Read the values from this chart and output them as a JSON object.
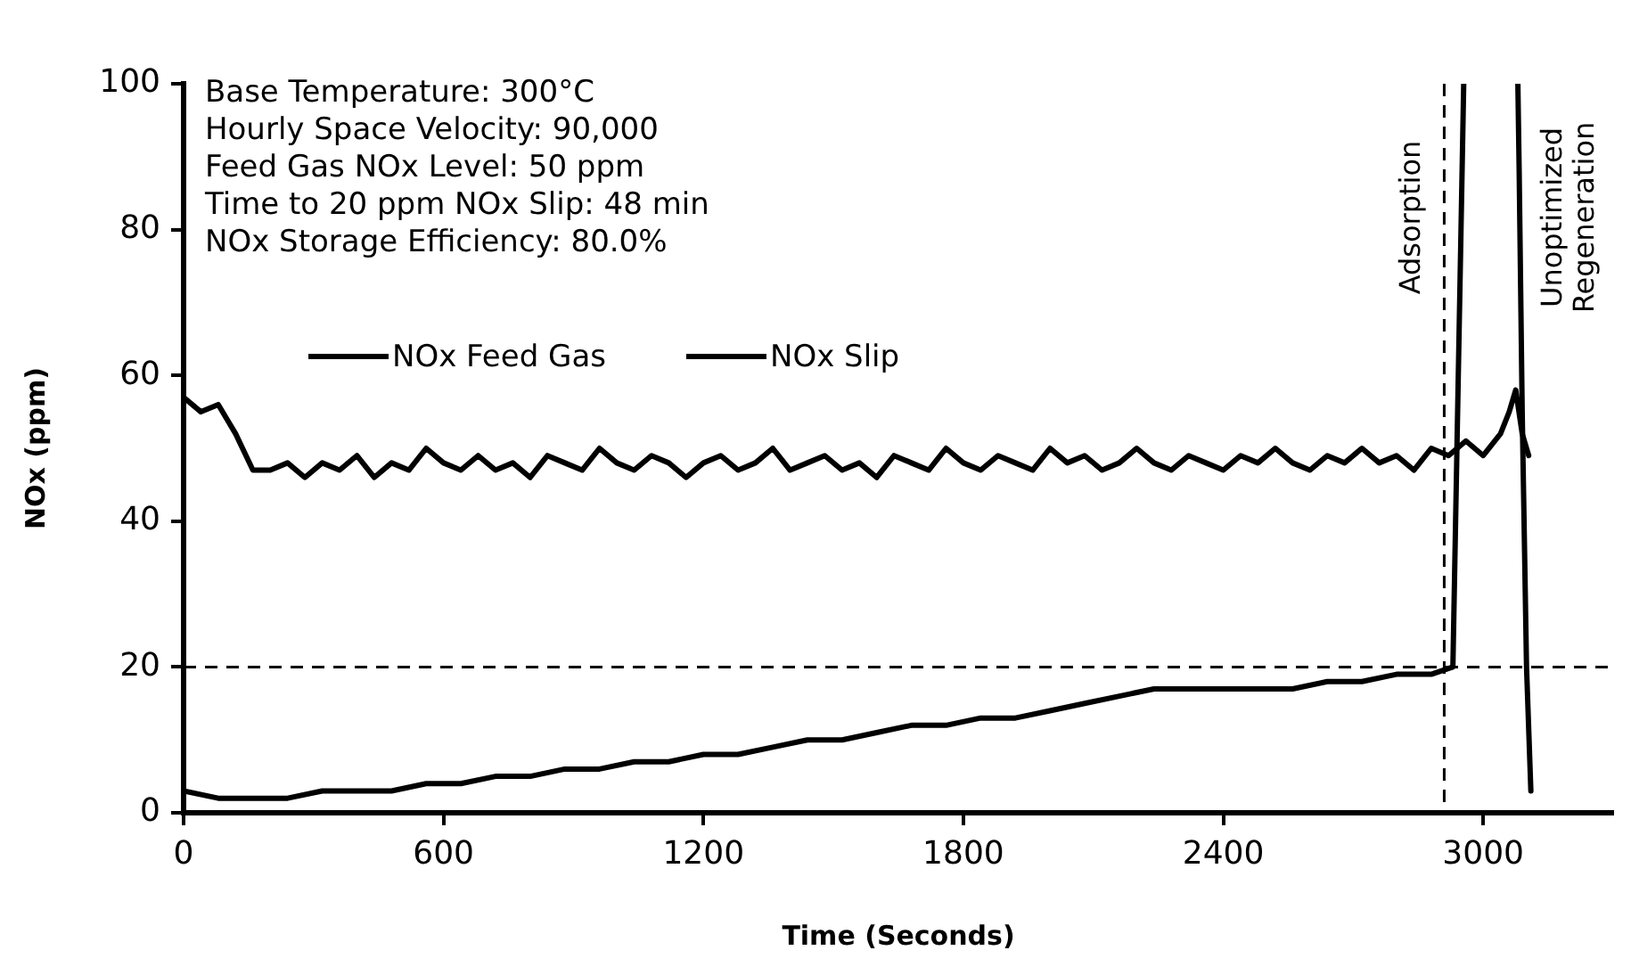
{
  "chart_data": {
    "type": "line",
    "xlabel": "Time (Seconds)",
    "ylabel": "NOx (ppm)",
    "xlim": [
      0,
      3300
    ],
    "xticks": [
      0,
      600,
      1200,
      1800,
      2400,
      3000
    ],
    "ylim": [
      0,
      100
    ],
    "yticks": [
      0,
      20,
      40,
      60,
      80,
      100
    ],
    "grid": false,
    "legend": "top left",
    "marker": "none",
    "line_style": "solid",
    "series": [
      {
        "name": "NOx Feed Gas",
        "color": "#000000",
        "x": [
          0,
          40,
          80,
          120,
          160,
          200,
          240,
          280,
          320,
          360,
          400,
          440,
          480,
          520,
          560,
          600,
          640,
          680,
          720,
          760,
          800,
          840,
          880,
          920,
          960,
          1000,
          1040,
          1080,
          1120,
          1160,
          1200,
          1240,
          1280,
          1320,
          1360,
          1400,
          1440,
          1480,
          1520,
          1560,
          1600,
          1640,
          1680,
          1720,
          1760,
          1800,
          1840,
          1880,
          1920,
          1960,
          2000,
          2040,
          2080,
          2120,
          2160,
          2200,
          2240,
          2280,
          2320,
          2360,
          2400,
          2440,
          2480,
          2520,
          2560,
          2600,
          2640,
          2680,
          2720,
          2760,
          2800,
          2840,
          2880,
          2920,
          2960,
          3000,
          3040,
          3060,
          3075,
          3090,
          3105
        ],
        "values": [
          57,
          55,
          56,
          52,
          47,
          47,
          48,
          46,
          48,
          47,
          49,
          46,
          48,
          47,
          50,
          48,
          47,
          49,
          47,
          48,
          46,
          49,
          48,
          47,
          50,
          48,
          47,
          49,
          48,
          46,
          48,
          49,
          47,
          48,
          50,
          47,
          48,
          49,
          47,
          48,
          46,
          49,
          48,
          47,
          50,
          48,
          47,
          49,
          48,
          47,
          50,
          48,
          49,
          47,
          48,
          50,
          48,
          47,
          49,
          48,
          47,
          49,
          48,
          50,
          48,
          47,
          49,
          48,
          50,
          48,
          49,
          47,
          50,
          49,
          51,
          49,
          52,
          55,
          58,
          52,
          49
        ]
      },
      {
        "name": "NOx Slip",
        "color": "#000000",
        "x": [
          0,
          80,
          160,
          240,
          320,
          400,
          480,
          560,
          640,
          720,
          800,
          880,
          960,
          1040,
          1120,
          1200,
          1280,
          1360,
          1440,
          1520,
          1600,
          1680,
          1760,
          1840,
          1920,
          2000,
          2080,
          2160,
          2240,
          2320,
          2400,
          2480,
          2560,
          2640,
          2720,
          2800,
          2880,
          2930,
          2955,
          3000,
          3080,
          3083,
          3090,
          3100,
          3110
        ],
        "values": [
          3,
          2,
          2,
          2,
          3,
          3,
          3,
          4,
          4,
          5,
          5,
          6,
          6,
          7,
          7,
          8,
          8,
          9,
          10,
          10,
          11,
          12,
          12,
          13,
          13,
          14,
          15,
          16,
          17,
          17,
          17,
          17,
          17,
          18,
          18,
          19,
          19,
          20,
          100,
          null,
          100,
          88,
          55,
          20,
          3
        ]
      }
    ],
    "ref_lines": [
      {
        "axis": "y",
        "value": 20,
        "line_style": "dashed",
        "color": "#000000"
      },
      {
        "axis": "x",
        "value": 2910,
        "line_style": "dashed",
        "color": "#000000"
      }
    ],
    "annotations": [
      "Base Temperature: 300°C",
      "Hourly Space Velocity: 90,000",
      "Feed Gas NOx Level: 50 ppm",
      "Time to 20 ppm NOx Slip: 48 min",
      "NOx Storage Efficiency: 80.0%",
      "Adsorption",
      "Unoptimized\nRegeneration"
    ]
  }
}
